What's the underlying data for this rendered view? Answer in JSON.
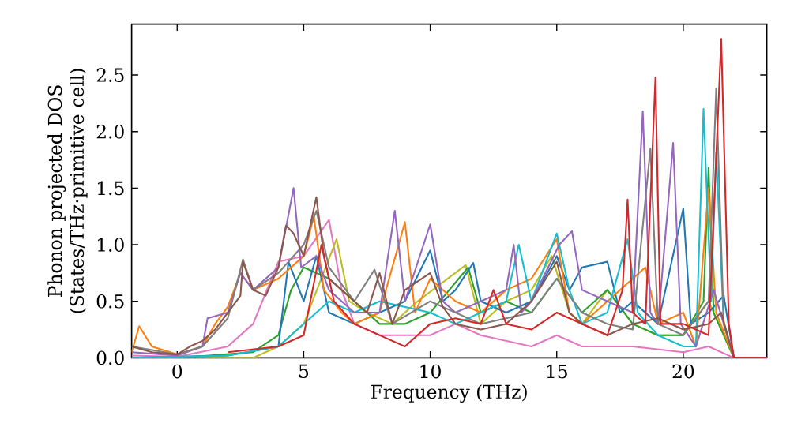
{
  "chart_data": {
    "type": "line",
    "xlabel": "Frequency (THz)",
    "ylabel": "Phonon projected DOS (States/THz·primitive cell)",
    "xlim": [
      -1.8,
      23.3
    ],
    "ylim": [
      0,
      2.95
    ],
    "xticks": [
      0,
      5,
      10,
      15,
      20
    ],
    "yticks": [
      {
        "value": 0,
        "label": "0.0"
      },
      {
        "value": 0.5,
        "label": "0.5"
      },
      {
        "value": 1.0,
        "label": "1.0"
      },
      {
        "value": 1.5,
        "label": "1.5"
      },
      {
        "value": 2.0,
        "label": "2.0"
      },
      {
        "value": 2.5,
        "label": "2.5"
      }
    ],
    "series": [
      {
        "color": "#e377c2",
        "x": [
          -1.8,
          0,
          2,
          3,
          4,
          5,
          6,
          6.5,
          7,
          8,
          10,
          11,
          12,
          14,
          15,
          16,
          18,
          20,
          21,
          22,
          23.3
        ],
        "values": [
          0.02,
          0.01,
          0.1,
          0.3,
          0.85,
          0.9,
          1.22,
          0.6,
          0.3,
          0.2,
          0.2,
          0.3,
          0.2,
          0.1,
          0.2,
          0.1,
          0.1,
          0.05,
          0.1,
          0,
          0
        ]
      },
      {
        "color": "#bcbd22",
        "x": [
          -1.8,
          3,
          4,
          5,
          6.3,
          6.8,
          7.5,
          8.5,
          9.5,
          11.4,
          12,
          13,
          14,
          14.8,
          15.5,
          16,
          17,
          18,
          19,
          20,
          21,
          22,
          23.3
        ],
        "values": [
          0,
          0,
          0.1,
          0.3,
          1.05,
          0.5,
          0.4,
          0.3,
          0.5,
          0.82,
          0.3,
          0.5,
          0.6,
          0.9,
          0.4,
          0.3,
          0.6,
          0.3,
          0.2,
          0.2,
          0.5,
          0,
          0
        ]
      },
      {
        "color": "#2ca02c",
        "x": [
          -1.8,
          0,
          3,
          4,
          4.5,
          5,
          6,
          7,
          8,
          9,
          10,
          11.5,
          12,
          13,
          14,
          15,
          16,
          17,
          18,
          19,
          20,
          20.8,
          21,
          21.2,
          22,
          23.3
        ],
        "values": [
          0,
          0,
          0.05,
          0.2,
          0.6,
          0.8,
          0.7,
          0.5,
          0.3,
          0.3,
          0.4,
          0.8,
          0.4,
          0.5,
          0.4,
          0.7,
          0.4,
          0.6,
          0.3,
          0.2,
          0.2,
          0.5,
          1.68,
          0.4,
          0,
          0
        ]
      },
      {
        "color": "#1f77b4",
        "x": [
          -1.8,
          2,
          4,
          4.4,
          5,
          5.5,
          6,
          7,
          8,
          9,
          10,
          10.5,
          11,
          11.7,
          12,
          13,
          14,
          15,
          15.5,
          16,
          17,
          17.5,
          18,
          19,
          20,
          20.3,
          21,
          21.6,
          22,
          23.3
        ],
        "values": [
          0,
          0.02,
          0.1,
          0.85,
          0.5,
          0.9,
          0.4,
          0.3,
          0.4,
          0.5,
          0.95,
          0.5,
          0.6,
          0.84,
          0.5,
          0.4,
          0.5,
          0.9,
          0.6,
          0.8,
          0.85,
          0.4,
          0.5,
          0.3,
          1.32,
          0.3,
          0.4,
          0.55,
          0,
          0
        ]
      },
      {
        "color": "#ff7f0e",
        "x": [
          -1.8,
          -1.5,
          -1,
          0,
          1,
          1.5,
          2,
          2.5,
          3,
          4,
          5,
          5.4,
          5.8,
          6.5,
          7,
          8,
          9,
          9.4,
          10,
          11,
          12,
          13,
          14,
          15,
          15.5,
          16,
          17,
          18.5,
          19,
          20,
          20.5,
          21,
          21.3,
          22,
          23.3
        ],
        "values": [
          0.05,
          0.28,
          0.1,
          0.03,
          0.1,
          0.3,
          0.45,
          0.75,
          0.6,
          0.7,
          0.9,
          1.25,
          0.6,
          0.4,
          0.3,
          0.4,
          1.2,
          0.4,
          0.7,
          0.5,
          0.4,
          0.6,
          0.7,
          1.05,
          0.4,
          0.3,
          0.5,
          0.8,
          0.3,
          0.4,
          0.1,
          1.5,
          0.4,
          0,
          0
        ]
      },
      {
        "color": "#17becf",
        "x": [
          -1.8,
          2,
          4,
          5,
          6,
          7,
          8,
          9,
          10,
          11,
          12,
          13,
          13.5,
          14,
          15,
          15.5,
          16,
          17,
          17.8,
          18.2,
          19,
          20,
          20.5,
          20.8,
          21.1,
          21.3,
          21.6,
          22,
          23.3
        ],
        "values": [
          0,
          0.02,
          0.1,
          0.3,
          0.5,
          0.4,
          0.5,
          0.45,
          0.4,
          0.3,
          0.4,
          0.5,
          1.0,
          0.5,
          1.1,
          0.6,
          0.3,
          0.4,
          1.05,
          0.4,
          0.2,
          0.1,
          0.1,
          2.2,
          0.5,
          1.82,
          0.3,
          0,
          0
        ]
      },
      {
        "color": "#9467bd",
        "x": [
          -1.8,
          0,
          1,
          1.2,
          2,
          2.5,
          3,
          4,
          4.6,
          4.9,
          5.5,
          6,
          7,
          8,
          8.6,
          9,
          10,
          10.5,
          11,
          12,
          13,
          13.3,
          13.6,
          14,
          15.1,
          15.6,
          16,
          17,
          18,
          18.4,
          18.7,
          19,
          19.6,
          19.9,
          20.5,
          21.2,
          21.6,
          22,
          23.3
        ],
        "values": [
          0.05,
          0.02,
          0.1,
          0.35,
          0.4,
          0.75,
          0.6,
          0.8,
          1.5,
          0.8,
          0.9,
          0.6,
          0.4,
          0.4,
          1.3,
          0.5,
          1.18,
          0.5,
          0.4,
          0.5,
          0.6,
          1.0,
          0.4,
          0.5,
          1.0,
          1.12,
          0.6,
          0.5,
          0.4,
          2.18,
          0.4,
          0.3,
          1.9,
          0.3,
          0.1,
          0.6,
          0.3,
          0,
          0
        ]
      },
      {
        "color": "#7f7f7f",
        "x": [
          -1.8,
          0,
          1,
          2,
          2.6,
          3,
          4,
          5,
          5.5,
          6,
          7,
          7.8,
          8.5,
          10,
          12,
          14,
          15,
          16,
          17,
          18,
          18.7,
          19,
          20,
          21,
          21.3,
          21.6,
          22,
          23.3
        ],
        "values": [
          0.1,
          0.03,
          0.1,
          0.35,
          0.87,
          0.6,
          0.75,
          1.0,
          1.3,
          0.8,
          0.5,
          0.78,
          0.3,
          0.5,
          0.3,
          0.4,
          0.7,
          0.4,
          0.3,
          0.25,
          1.85,
          0.3,
          0.2,
          0.5,
          2.38,
          0.3,
          0,
          0
        ]
      },
      {
        "color": "#8c564b",
        "x": [
          -1.8,
          -1,
          0,
          0.5,
          1,
          1.5,
          2,
          2.5,
          2.6,
          3,
          3.5,
          4,
          4.3,
          4.6,
          5,
          5.5,
          5.8,
          6,
          6.5,
          7,
          7.5,
          8,
          8.5,
          9,
          10,
          10.5,
          11,
          12,
          13,
          14,
          15,
          15.5,
          16,
          17,
          18,
          19,
          20,
          21,
          21.5,
          22,
          23.3
        ],
        "values": [
          0.1,
          0.05,
          0.03,
          0.1,
          0.15,
          0.25,
          0.4,
          0.55,
          0.85,
          0.6,
          0.55,
          0.8,
          1.17,
          1.1,
          0.9,
          1.42,
          0.9,
          0.7,
          0.6,
          0.5,
          0.4,
          0.75,
          0.3,
          0.6,
          0.75,
          0.45,
          0.3,
          0.25,
          0.3,
          0.5,
          0.85,
          0.4,
          0.3,
          0.2,
          0.3,
          0.35,
          0.25,
          0.3,
          0.4,
          0,
          0
        ]
      },
      {
        "color": "#d62728",
        "x": [
          2,
          4,
          5,
          5.7,
          6.2,
          7,
          8,
          9,
          10,
          11,
          12,
          12.5,
          13,
          14,
          15,
          16,
          17,
          17.6,
          17.8,
          18,
          18.5,
          18.9,
          19.1,
          20,
          21,
          21.5,
          21.8,
          22,
          23.3
        ],
        "values": [
          0.05,
          0.1,
          0.2,
          1.0,
          0.5,
          0.3,
          0.2,
          0.1,
          0.3,
          0.35,
          0.3,
          0.6,
          0.3,
          0.25,
          0.4,
          0.3,
          0.2,
          0.6,
          1.4,
          0.4,
          0.3,
          2.48,
          0.3,
          0.3,
          0.2,
          2.82,
          0.3,
          0,
          0
        ]
      }
    ]
  }
}
